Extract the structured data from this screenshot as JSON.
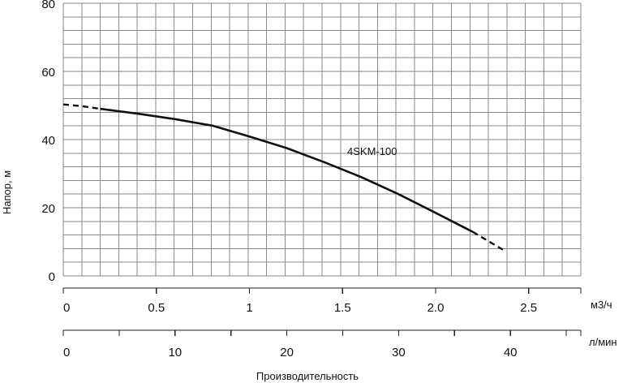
{
  "chart_data": {
    "type": "line",
    "ylabel": "Напор, м",
    "xlabel": "Производительность",
    "ylim": [
      0,
      80
    ],
    "y_ticks": [
      "0",
      "20",
      "40",
      "60",
      "80"
    ],
    "x_axes": [
      {
        "unit": "м3/ч",
        "xlim": [
          0,
          2.78
        ],
        "ticks": [
          "0",
          "0.5",
          "1",
          "1.5",
          "2.0",
          "2.5"
        ],
        "tick_values": [
          0,
          0.5,
          1,
          1.5,
          2.0,
          2.5
        ]
      },
      {
        "unit": "л/мин",
        "xlim": [
          0,
          46.3
        ],
        "ticks": [
          "0",
          "10",
          "20",
          "30",
          "40"
        ],
        "tick_values": [
          0,
          10,
          20,
          30,
          40
        ]
      }
    ],
    "grid": true,
    "series": [
      {
        "name": "4SKM-100",
        "x_unit": "м3/ч",
        "points": [
          {
            "x": 0.0,
            "y": 50.3
          },
          {
            "x": 0.1,
            "y": 49.8
          },
          {
            "x": 0.2,
            "y": 49.0
          },
          {
            "x": 0.4,
            "y": 47.6
          },
          {
            "x": 0.6,
            "y": 46.0
          },
          {
            "x": 0.8,
            "y": 44.1
          },
          {
            "x": 1.0,
            "y": 40.9
          },
          {
            "x": 1.2,
            "y": 37.5
          },
          {
            "x": 1.4,
            "y": 33.4
          },
          {
            "x": 1.6,
            "y": 29.0
          },
          {
            "x": 1.8,
            "y": 24.0
          },
          {
            "x": 2.0,
            "y": 18.5
          },
          {
            "x": 2.2,
            "y": 12.9
          },
          {
            "x": 2.37,
            "y": 7.4
          }
        ],
        "solid_range": [
          0.2,
          2.2
        ]
      }
    ]
  }
}
